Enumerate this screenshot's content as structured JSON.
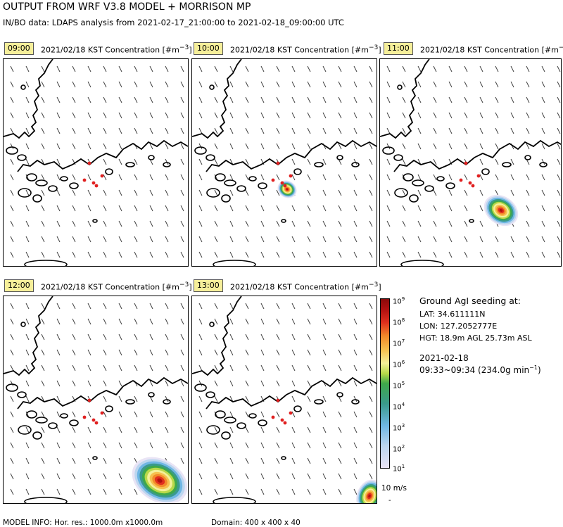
{
  "header": {
    "title": "OUTPUT FROM WRF V3.8 MODEL + MORRISON MP",
    "subtitle": "IN/BO data: LDAPS analysis from 2021-02-17_21:00:00 to 2021-02-18_09:00:00 UTC"
  },
  "panels": [
    {
      "time": "09:00",
      "label": "2021/02/18 KST  Concentration [#m",
      "unit_sup": "−3",
      "unit_close": "]",
      "plume": null
    },
    {
      "time": "10:00",
      "label": "2021/02/18 KST  Concentration [#m",
      "unit_sup": "−3",
      "unit_close": "]",
      "plume": "small"
    },
    {
      "time": "11:00",
      "label": "2021/02/18 KST  Concentration [#m",
      "unit_sup": "−3",
      "unit_close": "]",
      "plume": "medium"
    },
    {
      "time": "12:00",
      "label": "2021/02/18 KST  Concentration [#m",
      "unit_sup": "−3",
      "unit_close": "]",
      "plume": "large"
    },
    {
      "time": "13:00",
      "label": "2021/02/18 KST  Concentration [#m",
      "unit_sup": "−3",
      "unit_close": "]",
      "plume": "edge"
    }
  ],
  "colorbar": {
    "base": "10",
    "exponents": [
      "9",
      "8",
      "7",
      "6",
      "5",
      "4",
      "3",
      "2",
      "1"
    ],
    "colors": [
      "#e9e4f5",
      "#bcd6ef",
      "#6fb6e4",
      "#3a9a8c",
      "#3fa84a",
      "#b8d94a",
      "#f4f09a",
      "#f6c04e",
      "#f28a2a",
      "#e0301e",
      "#b01010"
    ]
  },
  "seeding": {
    "heading": "Ground AgI seeding at:",
    "lat": "LAT: 34.611111N",
    "lon": "LON: 127.2052777E",
    "hgt": "HGT: 18.9m AGL  25.73m ASL",
    "date": "2021-02-18",
    "window": "09:33~09:34 (234.0g min",
    "window_sup": "−1",
    "window_close": ")"
  },
  "vector_ref": {
    "label": "10 m/s",
    "mark": "-"
  },
  "footer": {
    "model_info": "MODEL INFO: Hor. res.: 1000.0m x1000.0m",
    "domain": "Domain: 400 x 400 x 40"
  }
}
